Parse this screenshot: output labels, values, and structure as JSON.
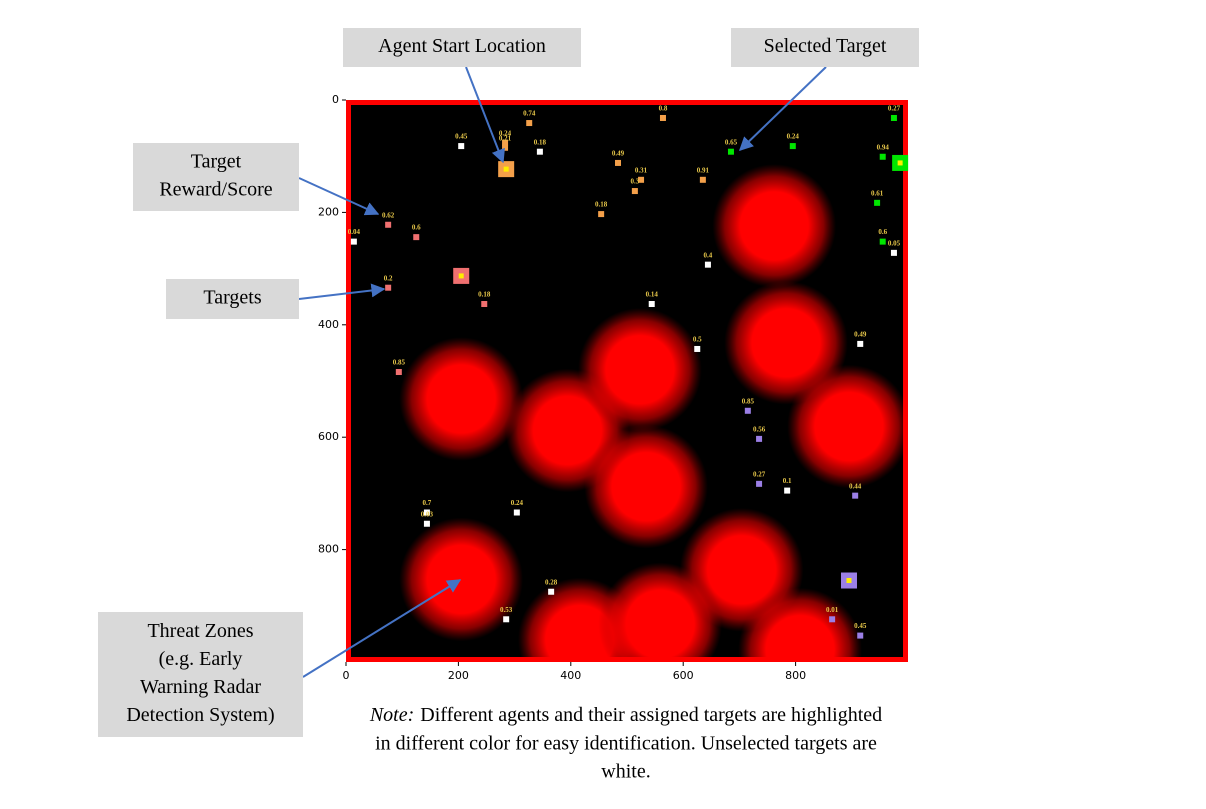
{
  "chart_data": {
    "type": "scatter",
    "xlim": [
      0,
      1000
    ],
    "ylim": [
      1000,
      0
    ],
    "xticks": [
      0,
      200,
      400,
      600,
      800
    ],
    "yticks": [
      0,
      200,
      400,
      600,
      800
    ],
    "frame_color": "#ff0000",
    "background": "#000000",
    "label_color": "#e8c84a",
    "threat_zones": {
      "color": "#ff0000",
      "x": [
        205,
        394,
        523,
        534,
        762,
        783,
        895,
        205,
        704,
        416,
        559,
        808
      ],
      "y": [
        532,
        588,
        480,
        688,
        224,
        432,
        581,
        853,
        836,
        960,
        933,
        978
      ],
      "r": [
        110,
        110,
        110,
        110,
        110,
        110,
        110,
        110,
        110,
        110,
        110,
        110
      ]
    },
    "groups": [
      {
        "color": "#f4a04a",
        "agent": {
          "x": 285,
          "y": 123
        },
        "targets": {
          "x": [
            326,
            564,
            283,
            283,
            484,
            525,
            514,
            454,
            635
          ],
          "y": [
            41,
            32,
            76,
            85,
            112,
            142,
            162,
            203,
            142
          ],
          "scores": [
            0.74,
            0.8,
            0.24,
            0.21,
            0.49,
            0.31,
            0.3,
            0.18,
            0.91
          ]
        }
      },
      {
        "color": "#00e600",
        "agent": {
          "x": 986,
          "y": 112
        },
        "targets": {
          "x": [
            975,
            795,
            685,
            955,
            945,
            955
          ],
          "y": [
            32,
            82,
            92,
            101,
            183,
            252
          ],
          "scores": [
            0.27,
            0.24,
            0.65,
            0.94,
            0.61,
            0.6
          ]
        }
      },
      {
        "color": "#f07070",
        "agent": {
          "x": 205,
          "y": 313
        },
        "targets": {
          "x": [
            75,
            125,
            75,
            246,
            94
          ],
          "y": [
            222,
            244,
            334,
            363,
            484
          ],
          "scores": [
            0.62,
            0.6,
            0.2,
            0.18,
            0.85
          ]
        }
      },
      {
        "color": "#9b7fe6",
        "agent": {
          "x": 895,
          "y": 855
        },
        "targets": {
          "x": [
            715,
            735,
            735,
            906,
            865,
            915
          ],
          "y": [
            553,
            603,
            683,
            704,
            924,
            953
          ],
          "scores": [
            0.85,
            0.56,
            0.27,
            0.44,
            0.01,
            0.45
          ]
        }
      },
      {
        "color": "#ffffff",
        "targets": {
          "x": [
            205,
            345,
            14,
            975,
            644,
            544,
            625,
            915,
            785,
            144,
            144,
            304,
            365,
            285
          ],
          "y": [
            82,
            92,
            252,
            272,
            293,
            363,
            443,
            434,
            695,
            734,
            754,
            734,
            875,
            924
          ],
          "scores": [
            0.45,
            0.18,
            0.04,
            0.05,
            0.4,
            0.14,
            0.5,
            0.49,
            0.1,
            0.7,
            0.03,
            0.24,
            0.28,
            0.53
          ]
        }
      }
    ]
  },
  "annotations": [
    {
      "lines": [
        "Agent Start Location"
      ]
    },
    {
      "lines": [
        "Selected Target"
      ]
    },
    {
      "lines": [
        "Target",
        "Reward/Score"
      ]
    },
    {
      "lines": [
        "Targets"
      ]
    },
    {
      "lines": [
        "Threat Zones",
        "(e.g. Early",
        "Warning Radar",
        "Detection System)"
      ]
    }
  ],
  "note": {
    "prefix": "Note:",
    "lines": [
      "Different agents and their assigned targets are highlighted",
      "in different color for easy identification. Unselected targets are",
      "white."
    ]
  }
}
